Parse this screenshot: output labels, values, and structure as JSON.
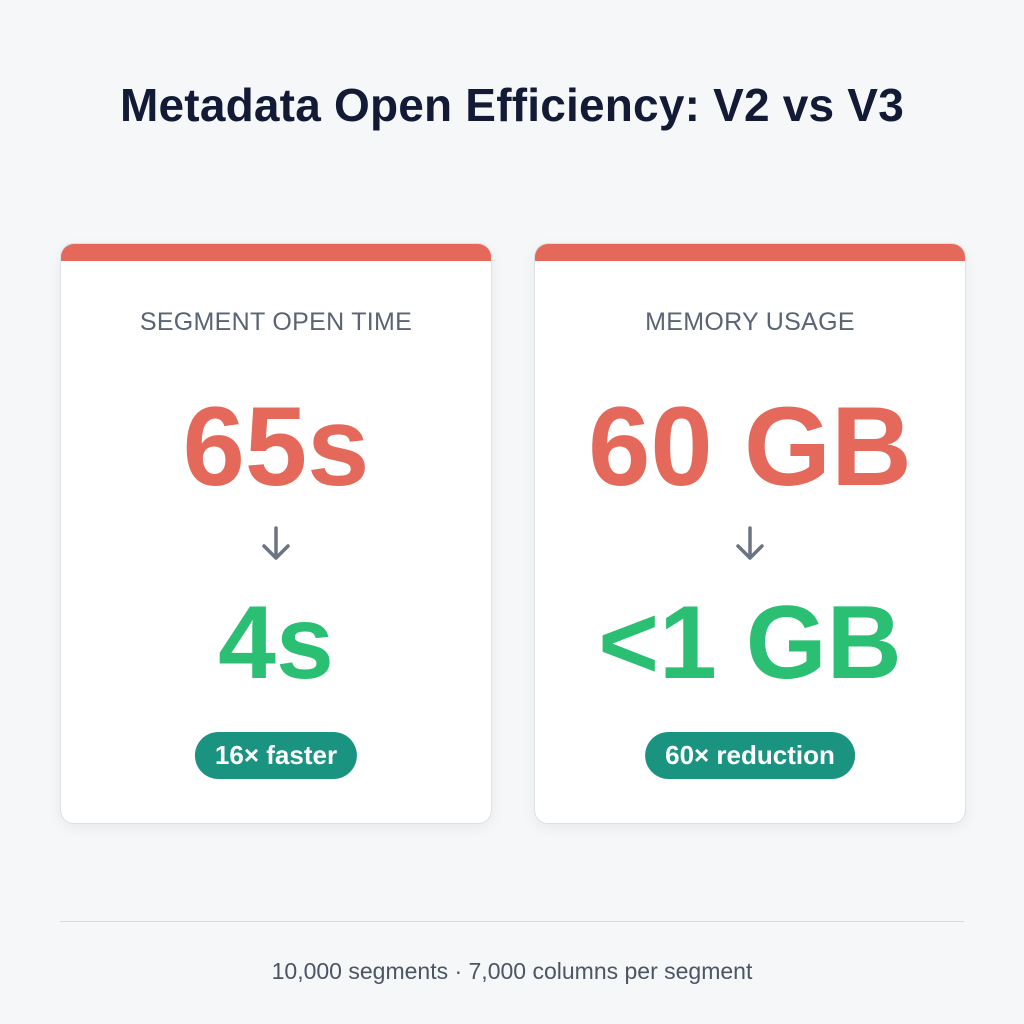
{
  "title": "Metadata Open Efficiency: V2 vs V3",
  "colors": {
    "accent_red": "#e4695b",
    "green": "#2bbf73",
    "badge": "#1a9480"
  },
  "cards": [
    {
      "label": "SEGMENT OPEN TIME",
      "before": "65s",
      "after": "4s",
      "badge": "16× faster",
      "arrow_icon": "arrow-down-icon"
    },
    {
      "label": "MEMORY USAGE",
      "before": "60 GB",
      "after": "<1 GB",
      "badge": "60× reduction",
      "arrow_icon": "arrow-down-icon"
    }
  ],
  "footer": "10,000 segments · 7,000 columns per segment"
}
